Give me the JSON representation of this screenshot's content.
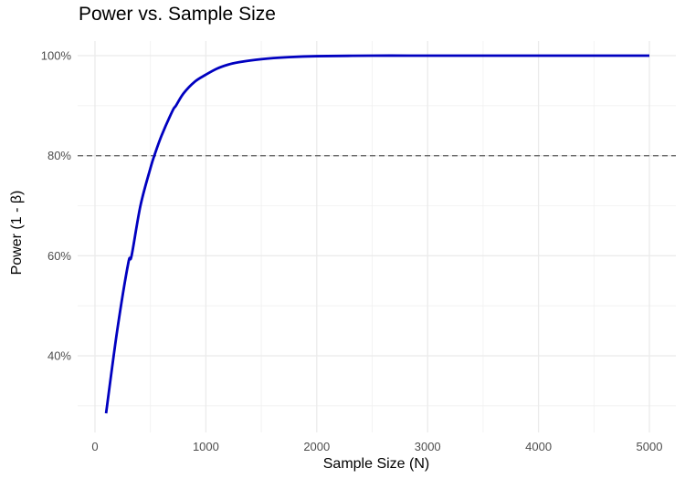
{
  "chart_data": {
    "type": "line",
    "title": "Power vs. Sample Size",
    "xlabel": "Sample Size (N)",
    "ylabel": "Power (1 - β)",
    "xlim": [
      0,
      5000
    ],
    "ylim": [
      0.28,
      1.0
    ],
    "x_ticks": [
      0,
      1000,
      2000,
      3000,
      4000,
      5000
    ],
    "x_tick_labels": [
      "0",
      "1000",
      "2000",
      "3000",
      "4000",
      "5000"
    ],
    "y_ticks": [
      0.4,
      0.6,
      0.8,
      1.0
    ],
    "y_tick_labels": [
      "40%",
      "60%",
      "80%",
      "100%"
    ],
    "grid": true,
    "legend": "none",
    "series": [
      {
        "name": "Power",
        "color": "#0000c0",
        "x": [
          100,
          200,
          300,
          330,
          410,
          500,
          535,
          600,
          700,
          730,
          800,
          900,
          1000,
          1100,
          1200,
          1300,
          1500,
          1750,
          2000,
          2500,
          3000,
          3500,
          4000,
          4500,
          5000
        ],
        "y": [
          0.285,
          0.45,
          0.585,
          0.6,
          0.7,
          0.775,
          0.8,
          0.84,
          0.89,
          0.9,
          0.925,
          0.948,
          0.962,
          0.974,
          0.982,
          0.987,
          0.993,
          0.997,
          0.999,
          1.0,
          1.0,
          1.0,
          1.0,
          1.0,
          1.0
        ]
      }
    ],
    "reference_lines": [
      {
        "orientation": "horizontal",
        "value": 0.8,
        "style": "dashed",
        "color": "#666666"
      }
    ]
  },
  "labels": {
    "title": "Power vs. Sample Size",
    "xlabel": "Sample Size (N)",
    "ylabel": "Power (1 - β)"
  }
}
